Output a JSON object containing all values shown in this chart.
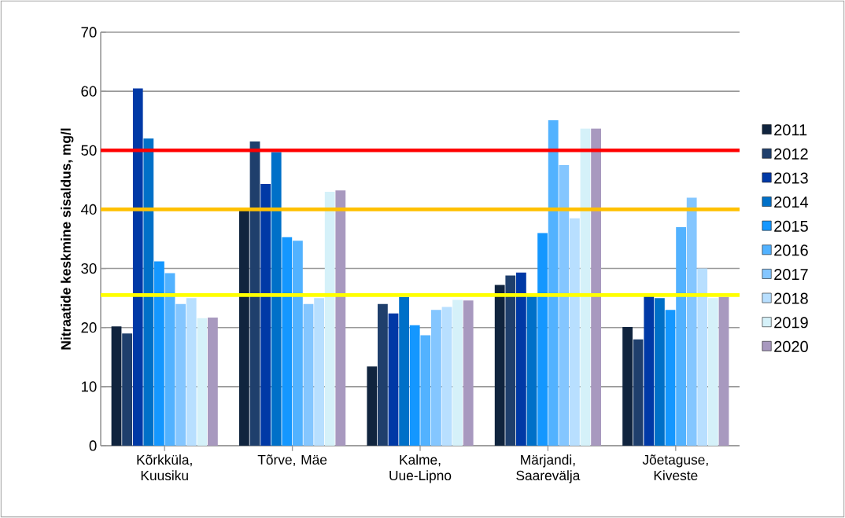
{
  "chart_data": {
    "type": "bar",
    "ylabel": "Nitraatide keskmine sisaldus, mg/l",
    "categories": [
      "Kõrkküla, Kuusiku",
      "Tõrve, Mäe",
      "Kalme, Uue-Lipno",
      "Märjandi, Saarevälja",
      "Jõetaguse, Kiveste"
    ],
    "series": [
      {
        "name": "2011",
        "color": "#10243e",
        "values": [
          20.2,
          40,
          13.4,
          27.2,
          20.1
        ]
      },
      {
        "name": "2012",
        "color": "#1f3f6c",
        "values": [
          19,
          51.5,
          24,
          28.8,
          18
        ]
      },
      {
        "name": "2013",
        "color": "#0039a6",
        "values": [
          60.5,
          44.3,
          22.4,
          29.3,
          25.5
        ]
      },
      {
        "name": "2014",
        "color": "#0070c8",
        "values": [
          52,
          49.7,
          25.2,
          25.5,
          25
        ]
      },
      {
        "name": "2015",
        "color": "#1497ff",
        "values": [
          31.2,
          35.3,
          20.4,
          36,
          23
        ]
      },
      {
        "name": "2016",
        "color": "#52b2ff",
        "values": [
          29.2,
          34.7,
          18.7,
          55.1,
          37
        ]
      },
      {
        "name": "2017",
        "color": "#84c6ff",
        "values": [
          24,
          24,
          23,
          47.5,
          42
        ]
      },
      {
        "name": "2018",
        "color": "#b8dfff",
        "values": [
          25,
          25,
          23.5,
          38.5,
          30
        ]
      },
      {
        "name": "2019",
        "color": "#d5f1f9",
        "values": [
          21.6,
          43,
          24.7,
          53.7,
          25
        ]
      },
      {
        "name": "2020",
        "color": "#a899bf",
        "values": [
          21.7,
          43.2,
          24.6,
          53.7,
          25.2
        ]
      }
    ],
    "ylim": [
      0,
      70
    ],
    "yticks": [
      0,
      10,
      20,
      30,
      40,
      50,
      60,
      70
    ],
    "grid": "y",
    "legend": "right",
    "ref_lines": [
      {
        "axis": "y",
        "value": 50,
        "color": "#ff0000"
      },
      {
        "axis": "y",
        "value": 40,
        "color": "#ffc000"
      },
      {
        "axis": "y",
        "value": 25.5,
        "color": "#ffff00"
      }
    ]
  }
}
